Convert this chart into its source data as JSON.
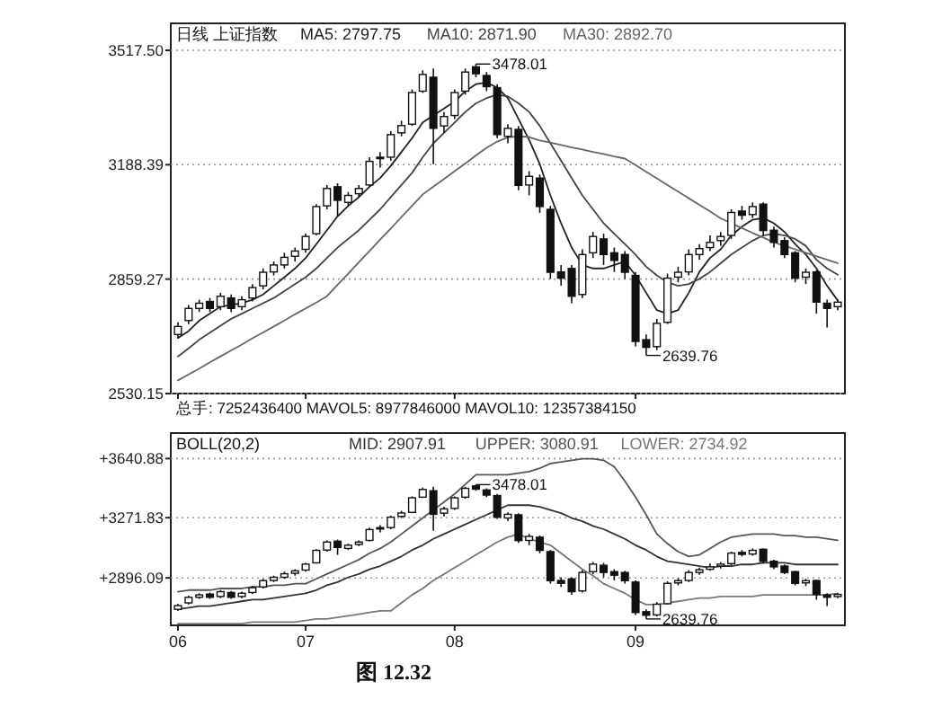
{
  "chart_data": [
    {
      "type": "candlestick",
      "title": "日线 上证指数",
      "legend": "top left",
      "tick_labels": "y",
      "grid": "y",
      "categories": [
        "06",
        null,
        null,
        null,
        null,
        null,
        null,
        null,
        null,
        null,
        null,
        null,
        "07",
        null,
        null,
        null,
        null,
        null,
        null,
        null,
        null,
        null,
        null,
        null,
        null,
        null,
        "08",
        null,
        null,
        null,
        null,
        null,
        null,
        null,
        null,
        null,
        null,
        null,
        null,
        null,
        null,
        null,
        null,
        "09",
        null,
        null,
        null,
        null,
        null,
        null,
        null,
        null,
        null,
        null,
        null,
        null,
        null,
        null,
        null,
        null,
        null,
        null,
        null
      ],
      "ylim": [
        2530.15,
        3595
      ],
      "yticks": [
        {
          "value": 3517.5,
          "label": "3517.50"
        },
        {
          "value": 3188.39,
          "label": "3188.39"
        },
        {
          "value": 2859.27,
          "label": "2859.27"
        },
        {
          "value": 2530.15,
          "label": "2530.15"
        }
      ],
      "ohlc": [
        [
          2700,
          2735,
          2690,
          2723
        ],
        [
          2740,
          2785,
          2730,
          2775
        ],
        [
          2775,
          2800,
          2765,
          2790
        ],
        [
          2795,
          2805,
          2765,
          2775
        ],
        [
          2780,
          2820,
          2770,
          2810
        ],
        [
          2805,
          2815,
          2765,
          2775
        ],
        [
          2780,
          2810,
          2770,
          2800
        ],
        [
          2805,
          2845,
          2795,
          2835
        ],
        [
          2840,
          2890,
          2830,
          2879
        ],
        [
          2880,
          2910,
          2870,
          2900
        ],
        [
          2900,
          2935,
          2890,
          2922
        ],
        [
          2925,
          2950,
          2910,
          2940
        ],
        [
          2945,
          2990,
          2935,
          2982
        ],
        [
          2990,
          3075,
          2985,
          3068
        ],
        [
          3070,
          3130,
          3060,
          3120
        ],
        [
          3125,
          3135,
          3040,
          3086
        ],
        [
          3080,
          3110,
          3070,
          3100
        ],
        [
          3105,
          3130,
          3095,
          3120
        ],
        [
          3130,
          3210,
          3125,
          3198
        ],
        [
          3210,
          3225,
          3180,
          3206
        ],
        [
          3210,
          3285,
          3200,
          3275
        ],
        [
          3280,
          3315,
          3270,
          3301
        ],
        [
          3305,
          3405,
          3300,
          3396
        ],
        [
          3400,
          3460,
          3395,
          3448
        ],
        [
          3440,
          3465,
          3190,
          3293
        ],
        [
          3300,
          3340,
          3280,
          3327
        ],
        [
          3330,
          3405,
          3320,
          3396
        ],
        [
          3400,
          3465,
          3390,
          3455
        ],
        [
          3470,
          3478.01,
          3440,
          3450
        ],
        [
          3445,
          3455,
          3400,
          3413
        ],
        [
          3410,
          3420,
          3265,
          3275
        ],
        [
          3270,
          3305,
          3250,
          3293
        ],
        [
          3290,
          3300,
          3115,
          3129
        ],
        [
          3130,
          3170,
          3100,
          3155
        ],
        [
          3150,
          3160,
          3050,
          3068
        ],
        [
          3060,
          3070,
          2860,
          2879
        ],
        [
          2880,
          2900,
          2840,
          2862
        ],
        [
          2890,
          2900,
          2790,
          2810
        ],
        [
          2815,
          2945,
          2805,
          2930
        ],
        [
          2935,
          2995,
          2920,
          2982
        ],
        [
          2975,
          2990,
          2900,
          2930
        ],
        [
          2935,
          2950,
          2880,
          2913
        ],
        [
          2930,
          2940,
          2860,
          2879
        ],
        [
          2870,
          2880,
          2665,
          2680
        ],
        [
          2685,
          2700,
          2639.76,
          2663
        ],
        [
          2665,
          2745,
          2655,
          2732
        ],
        [
          2735,
          2875,
          2730,
          2862
        ],
        [
          2865,
          2895,
          2850,
          2879
        ],
        [
          2880,
          2945,
          2870,
          2930
        ],
        [
          2930,
          2960,
          2915,
          2947
        ],
        [
          2950,
          2985,
          2940,
          2965
        ],
        [
          2970,
          2995,
          2955,
          2982
        ],
        [
          2985,
          3060,
          2975,
          3051
        ],
        [
          3055,
          3070,
          3030,
          3043
        ],
        [
          3045,
          3080,
          3035,
          3068
        ],
        [
          3075,
          3080,
          2985,
          2999
        ],
        [
          3000,
          3010,
          2950,
          2965
        ],
        [
          2970,
          2980,
          2920,
          2930
        ],
        [
          2935,
          2940,
          2850,
          2862
        ],
        [
          2865,
          2890,
          2845,
          2879
        ],
        [
          2880,
          2885,
          2760,
          2793
        ],
        [
          2790,
          2800,
          2720,
          2775
        ],
        [
          2780,
          2800,
          2770,
          2793
        ]
      ],
      "series": [
        {
          "name": "MA5: 2797.75",
          "type": "line",
          "color": "#222222",
          "values": [
            2690,
            2710,
            2740,
            2760,
            2780,
            2785,
            2790,
            2800,
            2815,
            2840,
            2865,
            2890,
            2920,
            2960,
            3000,
            3040,
            3070,
            3095,
            3125,
            3150,
            3185,
            3225,
            3265,
            3310,
            3330,
            3350,
            3370,
            3400,
            3420,
            3425,
            3410,
            3380,
            3320,
            3260,
            3190,
            3100,
            3020,
            2950,
            2900,
            2890,
            2890,
            2900,
            2910,
            2870,
            2820,
            2770,
            2760,
            2770,
            2820,
            2880,
            2920,
            2945,
            2985,
            3010,
            3030,
            3035,
            3020,
            2995,
            2960,
            2930,
            2890,
            2840,
            2798
          ]
        },
        {
          "name": "MA10: 2871.90",
          "type": "line",
          "color": "#444444",
          "values": [
            2637,
            2660,
            2685,
            2705,
            2725,
            2745,
            2760,
            2775,
            2790,
            2805,
            2825,
            2845,
            2865,
            2890,
            2920,
            2950,
            2975,
            3000,
            3030,
            3060,
            3095,
            3130,
            3165,
            3210,
            3250,
            3280,
            3310,
            3340,
            3365,
            3380,
            3390,
            3385,
            3365,
            3340,
            3300,
            3250,
            3200,
            3150,
            3100,
            3060,
            3020,
            2990,
            2960,
            2930,
            2895,
            2870,
            2850,
            2840,
            2845,
            2860,
            2880,
            2905,
            2930,
            2950,
            2970,
            2985,
            2990,
            2985,
            2975,
            2955,
            2915,
            2890,
            2872
          ]
        },
        {
          "name": "MA30: 2892.70",
          "type": "line",
          "color": "#666666",
          "values": [
            2568,
            2585,
            2602,
            2620,
            2637,
            2654,
            2671,
            2689,
            2706,
            2723,
            2740,
            2758,
            2775,
            2792,
            2810,
            2843,
            2875,
            2908,
            2940,
            2973,
            3005,
            3038,
            3070,
            3103,
            3125,
            3147,
            3170,
            3192,
            3215,
            3237,
            3255,
            3267,
            3270,
            3268,
            3258,
            3252,
            3245,
            3238,
            3232,
            3225,
            3219,
            3212,
            3206,
            3187,
            3168,
            3149,
            3130,
            3111,
            3092,
            3073,
            3054,
            3034,
            3020,
            3006,
            2992,
            2979,
            2965,
            2955,
            2945,
            2935,
            2925,
            2915,
            2905
          ]
        }
      ],
      "annotations": [
        "3478.01",
        "2639.76",
        "总手: 7252436400 MAVOL5: 8977846000 MAVOL10: 12357384150"
      ]
    },
    {
      "type": "candlestick",
      "title": "BOLL(20,2)",
      "legend": "top",
      "grid": "y",
      "categories": [
        "06",
        null,
        null,
        null,
        null,
        null,
        null,
        null,
        null,
        null,
        null,
        null,
        "07",
        null,
        null,
        null,
        null,
        null,
        null,
        null,
        null,
        null,
        null,
        null,
        null,
        null,
        "08",
        null,
        null,
        null,
        null,
        null,
        null,
        null,
        null,
        null,
        null,
        null,
        null,
        null,
        null,
        null,
        null,
        "09",
        null,
        null,
        null,
        null,
        null,
        null,
        null,
        null,
        null,
        null,
        null,
        null,
        null,
        null,
        null,
        null,
        null,
        null,
        null
      ],
      "ylim": [
        2600,
        3800
      ],
      "yticks": [
        {
          "value": 3640.88,
          "label": "+3640.88"
        },
        {
          "value": 3271.83,
          "label": "+3271.83"
        },
        {
          "value": 2896.09,
          "label": "+2896.09"
        }
      ],
      "ohlc": [
        [
          2700,
          2735,
          2690,
          2723
        ],
        [
          2740,
          2785,
          2730,
          2775
        ],
        [
          2775,
          2800,
          2765,
          2790
        ],
        [
          2795,
          2805,
          2765,
          2775
        ],
        [
          2780,
          2820,
          2770,
          2810
        ],
        [
          2805,
          2815,
          2765,
          2775
        ],
        [
          2780,
          2810,
          2770,
          2800
        ],
        [
          2805,
          2845,
          2795,
          2835
        ],
        [
          2840,
          2890,
          2830,
          2879
        ],
        [
          2880,
          2910,
          2870,
          2900
        ],
        [
          2900,
          2935,
          2890,
          2922
        ],
        [
          2925,
          2950,
          2910,
          2940
        ],
        [
          2945,
          2990,
          2935,
          2982
        ],
        [
          2990,
          3075,
          2985,
          3068
        ],
        [
          3070,
          3130,
          3060,
          3120
        ],
        [
          3125,
          3135,
          3040,
          3086
        ],
        [
          3080,
          3110,
          3070,
          3100
        ],
        [
          3105,
          3130,
          3095,
          3120
        ],
        [
          3130,
          3210,
          3125,
          3198
        ],
        [
          3210,
          3225,
          3180,
          3206
        ],
        [
          3210,
          3285,
          3200,
          3275
        ],
        [
          3280,
          3315,
          3270,
          3301
        ],
        [
          3305,
          3405,
          3300,
          3396
        ],
        [
          3400,
          3460,
          3395,
          3448
        ],
        [
          3440,
          3465,
          3190,
          3293
        ],
        [
          3300,
          3340,
          3280,
          3327
        ],
        [
          3330,
          3405,
          3320,
          3396
        ],
        [
          3400,
          3465,
          3390,
          3455
        ],
        [
          3470,
          3478.01,
          3440,
          3450
        ],
        [
          3445,
          3455,
          3400,
          3413
        ],
        [
          3410,
          3420,
          3265,
          3275
        ],
        [
          3270,
          3305,
          3250,
          3293
        ],
        [
          3290,
          3300,
          3115,
          3129
        ],
        [
          3130,
          3170,
          3100,
          3155
        ],
        [
          3150,
          3160,
          3050,
          3068
        ],
        [
          3060,
          3070,
          2860,
          2879
        ],
        [
          2880,
          2900,
          2840,
          2862
        ],
        [
          2890,
          2900,
          2790,
          2810
        ],
        [
          2815,
          2945,
          2805,
          2930
        ],
        [
          2935,
          2995,
          2920,
          2982
        ],
        [
          2975,
          2990,
          2900,
          2930
        ],
        [
          2935,
          2950,
          2880,
          2913
        ],
        [
          2930,
          2940,
          2860,
          2879
        ],
        [
          2870,
          2880,
          2665,
          2680
        ],
        [
          2685,
          2700,
          2639.76,
          2663
        ],
        [
          2665,
          2745,
          2655,
          2732
        ],
        [
          2735,
          2875,
          2730,
          2862
        ],
        [
          2865,
          2895,
          2850,
          2879
        ],
        [
          2880,
          2945,
          2870,
          2930
        ],
        [
          2930,
          2960,
          2915,
          2947
        ],
        [
          2950,
          2985,
          2940,
          2965
        ],
        [
          2970,
          2995,
          2955,
          2982
        ],
        [
          2985,
          3060,
          2975,
          3051
        ],
        [
          3055,
          3070,
          3030,
          3043
        ],
        [
          3045,
          3080,
          3035,
          3068
        ],
        [
          3075,
          3080,
          2985,
          2999
        ],
        [
          3000,
          3010,
          2950,
          2965
        ],
        [
          2970,
          2980,
          2920,
          2930
        ],
        [
          2935,
          2940,
          2850,
          2862
        ],
        [
          2865,
          2890,
          2845,
          2879
        ],
        [
          2880,
          2885,
          2760,
          2793
        ],
        [
          2790,
          2800,
          2720,
          2775
        ],
        [
          2780,
          2800,
          2770,
          2793
        ]
      ],
      "series": [
        {
          "name": "MID: 2907.91",
          "type": "line",
          "color": "#333333",
          "values": [
            2700,
            2710,
            2720,
            2720,
            2730,
            2740,
            2750,
            2760,
            2760,
            2770,
            2780,
            2790,
            2800,
            2820,
            2850,
            2870,
            2900,
            2920,
            2950,
            2970,
            3000,
            3030,
            3070,
            3100,
            3140,
            3170,
            3200,
            3230,
            3260,
            3290,
            3320,
            3350,
            3350,
            3350,
            3340,
            3320,
            3300,
            3270,
            3250,
            3220,
            3200,
            3170,
            3140,
            3100,
            3070,
            3030,
            3000,
            2990,
            2980,
            2970,
            2960,
            2970,
            2970,
            2980,
            2980,
            2990,
            2990,
            2990,
            2980,
            2980,
            2980,
            2980,
            2980
          ]
        },
        {
          "name": "UPPER: 3080.91",
          "type": "line",
          "color": "#555555",
          "values": [
            2810,
            2820,
            2820,
            2820,
            2830,
            2830,
            2830,
            2840,
            2840,
            2850,
            2850,
            2860,
            2860,
            2890,
            2920,
            2950,
            2980,
            3010,
            3050,
            3080,
            3120,
            3170,
            3220,
            3270,
            3320,
            3370,
            3420,
            3480,
            3540,
            3540,
            3540,
            3540,
            3550,
            3560,
            3580,
            3610,
            3620,
            3630,
            3640,
            3640,
            3630,
            3590,
            3500,
            3400,
            3290,
            3170,
            3110,
            3060,
            3030,
            3040,
            3080,
            3120,
            3150,
            3160,
            3170,
            3170,
            3170,
            3160,
            3160,
            3150,
            3150,
            3140,
            3130
          ]
        },
        {
          "name": "LOWER: 2734.92",
          "type": "line",
          "color": "#777777",
          "values": [
            2610,
            2610,
            2610,
            2610,
            2610,
            2610,
            2610,
            2620,
            2620,
            2620,
            2620,
            2620,
            2630,
            2640,
            2640,
            2650,
            2660,
            2670,
            2680,
            2690,
            2690,
            2740,
            2790,
            2830,
            2880,
            2920,
            2960,
            3000,
            3040,
            3080,
            3120,
            3150,
            3170,
            3140,
            3120,
            3100,
            3050,
            3000,
            2950,
            2910,
            2860,
            2830,
            2800,
            2760,
            2730,
            2730,
            2740,
            2750,
            2760,
            2770,
            2770,
            2780,
            2780,
            2780,
            2780,
            2790,
            2790,
            2790,
            2790,
            2790,
            2790,
            2790,
            2800
          ]
        }
      ],
      "annotations": [
        "3478.01",
        "2639.76",
        "图 12.32"
      ]
    }
  ]
}
